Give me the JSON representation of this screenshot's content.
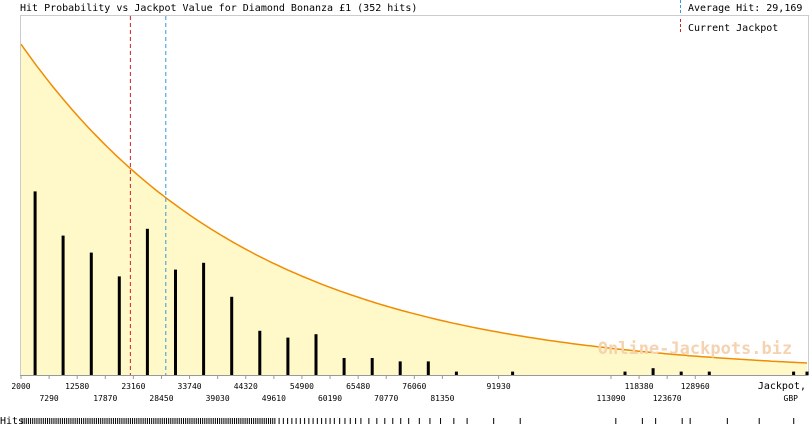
{
  "chart_data": {
    "type": "bar",
    "title": "Hit Probability vs Jackpot Value for Diamond Bonanza £1 (352 hits)",
    "xlabel": "Jackpot, GBP",
    "xlabel_line1": "Jackpot,",
    "xlabel_line2": "GBP",
    "rug_label": "Hits",
    "watermark": "Online-Jackpots.biz",
    "xlim": [
      2000,
      150000
    ],
    "tick_labels_upper": [
      2000,
      12580,
      23160,
      33740,
      44320,
      54900,
      65480,
      76060,
      91930,
      118380,
      128960
    ],
    "tick_labels_lower": [
      7290,
      17870,
      28450,
      39030,
      49610,
      60190,
      70770,
      81350,
      113090,
      123670
    ],
    "bars": [
      {
        "x": 4650,
        "value": 0.54
      },
      {
        "x": 9930,
        "value": 0.41
      },
      {
        "x": 15230,
        "value": 0.36
      },
      {
        "x": 20510,
        "value": 0.29
      },
      {
        "x": 25800,
        "value": 0.43
      },
      {
        "x": 31100,
        "value": 0.31
      },
      {
        "x": 36380,
        "value": 0.33
      },
      {
        "x": 41670,
        "value": 0.23
      },
      {
        "x": 46960,
        "value": 0.13
      },
      {
        "x": 52250,
        "value": 0.11
      },
      {
        "x": 57540,
        "value": 0.12
      },
      {
        "x": 62830,
        "value": 0.05
      },
      {
        "x": 68120,
        "value": 0.05
      },
      {
        "x": 73410,
        "value": 0.04
      },
      {
        "x": 78700,
        "value": 0.04
      },
      {
        "x": 83990,
        "value": 0.01
      },
      {
        "x": 94570,
        "value": 0.01
      },
      {
        "x": 115730,
        "value": 0.01
      },
      {
        "x": 121030,
        "value": 0.02
      },
      {
        "x": 126320,
        "value": 0.01
      },
      {
        "x": 131610,
        "value": 0.01
      },
      {
        "x": 147480,
        "value": 0.01
      },
      {
        "x": 150000,
        "value": 0.01
      }
    ],
    "curve": {
      "type": "exponential-decay",
      "color": "#f08c00",
      "fill": "#fff8c8"
    },
    "current_jackpot": {
      "label": "Current Jackpot",
      "value": 22500,
      "color": "#cc2222"
    },
    "average_hit": {
      "label": "Average Hit: 29,169",
      "value": 29169,
      "color": "#3399dd"
    },
    "hits_rug": [
      2200,
      2600,
      3000,
      3400,
      3800,
      4200,
      4600,
      5000,
      5400,
      5800,
      6200,
      6600,
      7000,
      7400,
      7800,
      8200,
      8600,
      9000,
      9400,
      9800,
      10200,
      10600,
      11000,
      11400,
      11800,
      12200,
      12600,
      13000,
      13400,
      13800,
      14200,
      14600,
      15000,
      15400,
      15800,
      16200,
      16600,
      17000,
      17400,
      17800,
      18200,
      18600,
      19000,
      19400,
      19800,
      20200,
      20600,
      21000,
      21400,
      21800,
      22200,
      22600,
      23000,
      23400,
      23800,
      24200,
      24600,
      25000,
      25400,
      25800,
      26200,
      26600,
      27000,
      27400,
      27800,
      28200,
      28600,
      29000,
      29400,
      29800,
      30200,
      30600,
      31000,
      31400,
      31800,
      32200,
      32600,
      33000,
      33400,
      33800,
      34200,
      34600,
      35000,
      35400,
      35800,
      36200,
      36600,
      37000,
      37400,
      37800,
      38200,
      38600,
      39000,
      39400,
      39800,
      40200,
      40600,
      41000,
      41400,
      41800,
      42200,
      42600,
      43000,
      43400,
      43800,
      44200,
      44600,
      45000,
      45400,
      45800,
      46200,
      46600,
      47000,
      47400,
      47800,
      48200,
      48600,
      49000,
      49400,
      49800,
      50600,
      51400,
      52200,
      53000,
      53800,
      54600,
      55400,
      56200,
      57000,
      57800,
      58600,
      59400,
      60200,
      61000,
      62000,
      63000,
      64000,
      65000,
      66000,
      67500,
      69000,
      70500,
      72000,
      73500,
      75000,
      77000,
      79000,
      81000,
      83500,
      86000,
      91000,
      96000,
      114000,
      119000,
      121500,
      126500,
      128000,
      135000,
      141000,
      147500
    ]
  }
}
